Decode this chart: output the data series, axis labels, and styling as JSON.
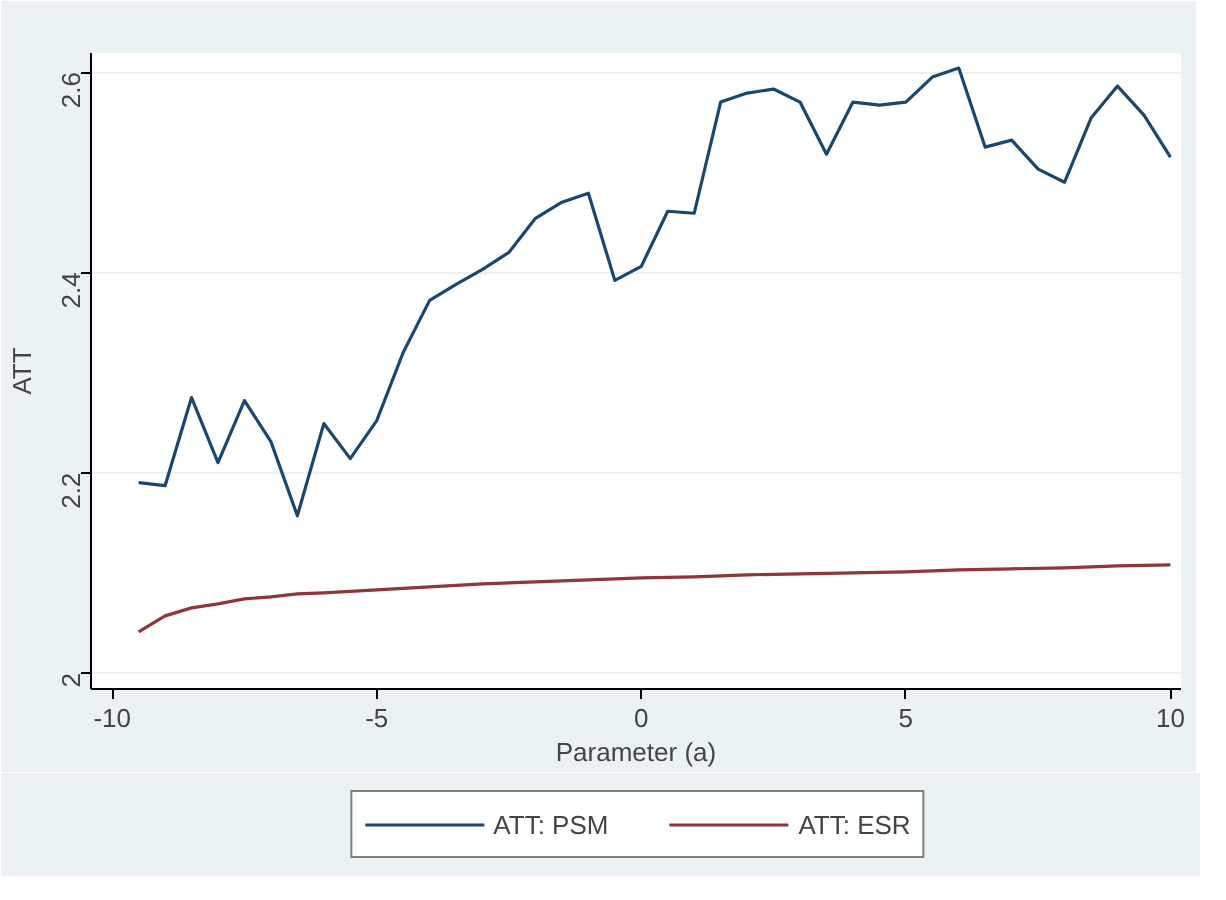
{
  "chart_data": {
    "type": "line",
    "xlabel": "Parameter (a)",
    "ylabel": "ATT",
    "x": [
      -9.5,
      -9,
      -8.5,
      -8,
      -7.5,
      -7,
      -6.5,
      -6,
      -5.5,
      -5,
      -4.5,
      -4,
      -3.5,
      -3,
      -2.5,
      -2,
      -1.5,
      -1,
      -0.5,
      0,
      0.5,
      1,
      1.5,
      2,
      2.5,
      3,
      3.5,
      4,
      4.5,
      5,
      5.5,
      6,
      6.5,
      7,
      7.5,
      8,
      8.5,
      9,
      9.5,
      10
    ],
    "series": [
      {
        "name": "ATT: PSM",
        "color": "#1a476f",
        "values": [
          2.19,
          2.187,
          2.275,
          2.21,
          2.272,
          2.231,
          2.157,
          2.249,
          2.214,
          2.252,
          2.32,
          2.372,
          2.388,
          2.403,
          2.42,
          2.454,
          2.47,
          2.479,
          2.392,
          2.406,
          2.461,
          2.459,
          2.57,
          2.579,
          2.583,
          2.57,
          2.518,
          2.57,
          2.567,
          2.57,
          2.595,
          2.604,
          2.525,
          2.532,
          2.503,
          2.49,
          2.554,
          2.586,
          2.557,
          2.515
        ]
      },
      {
        "name": "ATT: ESR",
        "color": "#90353b",
        "x": [
          -9.5,
          -9,
          -8.5,
          -8,
          -7.5,
          -7,
          -6.5,
          -6,
          -5,
          -4,
          -3,
          -2,
          -1,
          0,
          1,
          2,
          3,
          4,
          5,
          6,
          7,
          8,
          9,
          10
        ],
        "values": [
          2.041,
          2.057,
          2.065,
          2.069,
          2.074,
          2.076,
          2.079,
          2.08,
          2.083,
          2.086,
          2.089,
          2.091,
          2.093,
          2.095,
          2.096,
          2.098,
          2.099,
          2.1,
          2.101,
          2.103,
          2.104,
          2.105,
          2.107,
          2.108
        ]
      }
    ],
    "xlim": [
      -10.4,
      10.2
    ],
    "xticks": [
      -10,
      -5,
      0,
      5,
      10
    ],
    "ylim": [
      1.984,
      2.619
    ],
    "yticks": [
      2,
      2.2,
      2.4,
      2.6
    ],
    "grid": "y",
    "legend": "bottom",
    "line_style": "solid"
  }
}
